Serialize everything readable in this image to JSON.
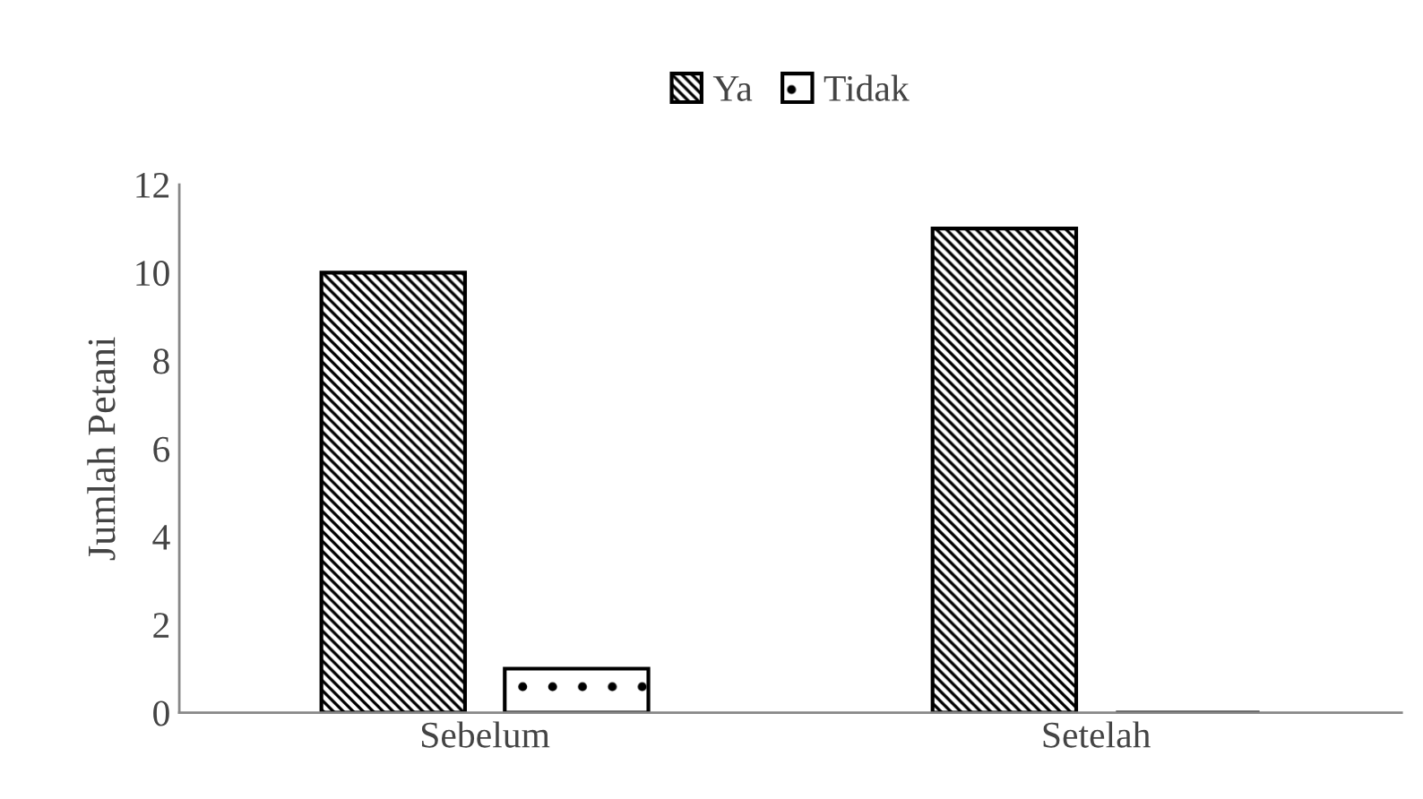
{
  "chart_data": {
    "type": "bar",
    "ylabel": "Jumlah Petani",
    "categories": [
      "Sebelum",
      "Setelah"
    ],
    "series": [
      {
        "name": "Ya",
        "color": "#000000",
        "values": [
          10,
          11
        ]
      },
      {
        "name": "Tidak",
        "color": "#000000",
        "values": [
          1,
          0
        ]
      }
    ],
    "ylim": [
      0,
      12
    ],
    "yticks": [
      0,
      2,
      4,
      6,
      8,
      10,
      12
    ],
    "grid": false,
    "legend": "top"
  }
}
